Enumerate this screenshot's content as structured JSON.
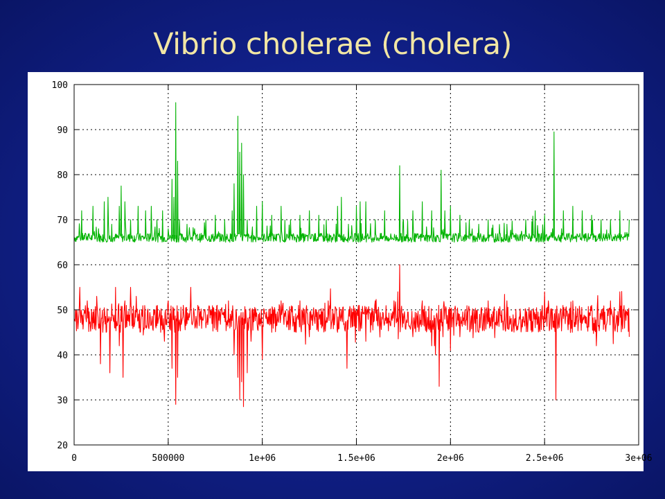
{
  "slide": {
    "title": "Vibrio cholerae (cholera)"
  },
  "chart_data": {
    "type": "line",
    "title": "Vibrio cholerae (cholera)",
    "xlabel": "",
    "ylabel": "",
    "xlim": [
      0,
      3000000
    ],
    "ylim": [
      20,
      100
    ],
    "x_ticks": [
      0,
      500000,
      1000000,
      1500000,
      2000000,
      2500000,
      3000000
    ],
    "x_tick_labels": [
      "0",
      "500000",
      "1e+06",
      "1.5e+06",
      "2e+06",
      "2.5e+06",
      "3e+06"
    ],
    "y_ticks": [
      20,
      30,
      40,
      50,
      60,
      70,
      80,
      90,
      100
    ],
    "y_tick_labels": [
      "20",
      "30",
      "40",
      "50",
      "60",
      "70",
      "80",
      "90",
      "100"
    ],
    "grid": true,
    "legend": "none",
    "series": [
      {
        "color": "#00b300",
        "baseline": 66,
        "x_end": 2950000,
        "points": [
          [
            0,
            66
          ],
          [
            40000,
            72
          ],
          [
            60000,
            67
          ],
          [
            100000,
            73
          ],
          [
            130000,
            68
          ],
          [
            160000,
            74
          ],
          [
            180000,
            75
          ],
          [
            200000,
            69
          ],
          [
            240000,
            73
          ],
          [
            250000,
            77.5
          ],
          [
            270000,
            74
          ],
          [
            300000,
            70
          ],
          [
            340000,
            73
          ],
          [
            380000,
            72
          ],
          [
            410000,
            73
          ],
          [
            440000,
            70
          ],
          [
            470000,
            72
          ],
          [
            500000,
            68
          ],
          [
            520000,
            79
          ],
          [
            530000,
            75
          ],
          [
            540000,
            96
          ],
          [
            550000,
            83
          ],
          [
            560000,
            70
          ],
          [
            600000,
            69
          ],
          [
            640000,
            68
          ],
          [
            700000,
            70
          ],
          [
            750000,
            71
          ],
          [
            800000,
            70
          ],
          [
            840000,
            72
          ],
          [
            850000,
            78
          ],
          [
            870000,
            93
          ],
          [
            880000,
            85
          ],
          [
            890000,
            87
          ],
          [
            900000,
            80
          ],
          [
            920000,
            70
          ],
          [
            970000,
            73
          ],
          [
            1000000,
            74
          ],
          [
            1050000,
            71
          ],
          [
            1100000,
            73
          ],
          [
            1150000,
            70
          ],
          [
            1200000,
            71
          ],
          [
            1250000,
            72
          ],
          [
            1300000,
            71
          ],
          [
            1340000,
            70
          ],
          [
            1400000,
            73
          ],
          [
            1420000,
            75
          ],
          [
            1500000,
            73
          ],
          [
            1520000,
            74
          ],
          [
            1550000,
            74
          ],
          [
            1600000,
            70
          ],
          [
            1650000,
            72
          ],
          [
            1730000,
            82
          ],
          [
            1750000,
            70
          ],
          [
            1800000,
            72
          ],
          [
            1850000,
            74
          ],
          [
            1900000,
            72
          ],
          [
            1950000,
            81
          ],
          [
            1970000,
            72
          ],
          [
            2000000,
            73
          ],
          [
            2050000,
            71
          ],
          [
            2100000,
            70
          ],
          [
            2150000,
            69
          ],
          [
            2200000,
            70
          ],
          [
            2300000,
            69
          ],
          [
            2400000,
            70
          ],
          [
            2450000,
            72
          ],
          [
            2500000,
            71
          ],
          [
            2550000,
            89.5
          ],
          [
            2600000,
            72
          ],
          [
            2650000,
            73
          ],
          [
            2700000,
            72
          ],
          [
            2750000,
            71
          ],
          [
            2800000,
            70
          ],
          [
            2850000,
            70
          ],
          [
            2900000,
            72
          ],
          [
            2950000,
            70
          ]
        ]
      },
      {
        "color": "#ff0000",
        "baseline": 48,
        "x_end": 2950000,
        "points": [
          [
            0,
            48
          ],
          [
            30000,
            55
          ],
          [
            70000,
            52
          ],
          [
            120000,
            53
          ],
          [
            140000,
            38
          ],
          [
            170000,
            45
          ],
          [
            190000,
            36
          ],
          [
            220000,
            55
          ],
          [
            240000,
            42
          ],
          [
            260000,
            35
          ],
          [
            270000,
            52
          ],
          [
            300000,
            55
          ],
          [
            330000,
            53
          ],
          [
            380000,
            46
          ],
          [
            430000,
            50
          ],
          [
            460000,
            45
          ],
          [
            480000,
            43
          ],
          [
            500000,
            52
          ],
          [
            520000,
            37
          ],
          [
            540000,
            29
          ],
          [
            550000,
            35
          ],
          [
            580000,
            51
          ],
          [
            620000,
            55
          ],
          [
            700000,
            46
          ],
          [
            760000,
            51
          ],
          [
            820000,
            52
          ],
          [
            850000,
            40
          ],
          [
            870000,
            35
          ],
          [
            880000,
            30
          ],
          [
            890000,
            34
          ],
          [
            900000,
            28.5
          ],
          [
            920000,
            36
          ],
          [
            940000,
            43
          ],
          [
            980000,
            49
          ],
          [
            1000000,
            39
          ],
          [
            1050000,
            45
          ],
          [
            1100000,
            52
          ],
          [
            1150000,
            47
          ],
          [
            1200000,
            52
          ],
          [
            1250000,
            44
          ],
          [
            1300000,
            50
          ],
          [
            1350000,
            52
          ],
          [
            1400000,
            45
          ],
          [
            1450000,
            37
          ],
          [
            1500000,
            46
          ],
          [
            1550000,
            43
          ],
          [
            1600000,
            52
          ],
          [
            1650000,
            47
          ],
          [
            1700000,
            52
          ],
          [
            1720000,
            54
          ],
          [
            1730000,
            60
          ],
          [
            1750000,
            47
          ],
          [
            1800000,
            44
          ],
          [
            1850000,
            52
          ],
          [
            1880000,
            47
          ],
          [
            1900000,
            42
          ],
          [
            1920000,
            40
          ],
          [
            1940000,
            33
          ],
          [
            1960000,
            44
          ],
          [
            2000000,
            41
          ],
          [
            2050000,
            44
          ],
          [
            2100000,
            50
          ],
          [
            2150000,
            45
          ],
          [
            2200000,
            52
          ],
          [
            2250000,
            47
          ],
          [
            2300000,
            52
          ],
          [
            2350000,
            46
          ],
          [
            2400000,
            50
          ],
          [
            2450000,
            46
          ],
          [
            2500000,
            54
          ],
          [
            2520000,
            52
          ],
          [
            2550000,
            46
          ],
          [
            2560000,
            30
          ],
          [
            2600000,
            48
          ],
          [
            2650000,
            52
          ],
          [
            2700000,
            47
          ],
          [
            2750000,
            51
          ],
          [
            2800000,
            49
          ],
          [
            2850000,
            52
          ],
          [
            2900000,
            54
          ],
          [
            2930000,
            50
          ],
          [
            2950000,
            44
          ]
        ]
      }
    ]
  }
}
